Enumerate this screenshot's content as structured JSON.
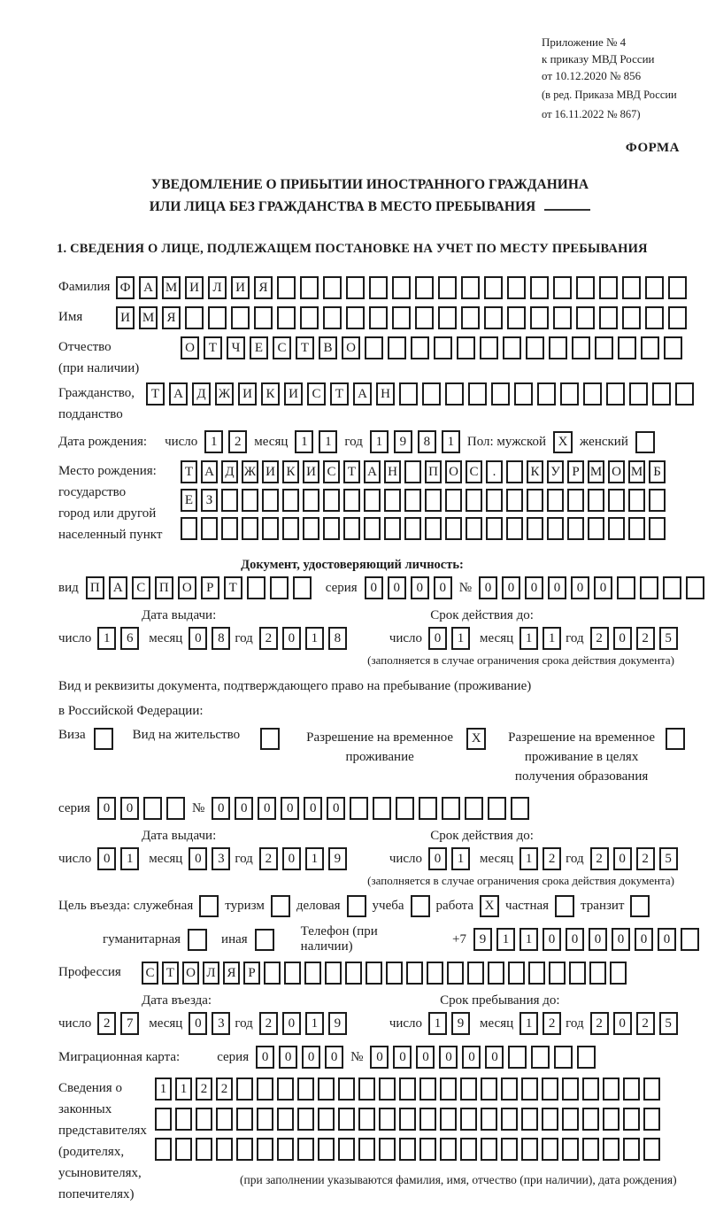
{
  "header": {
    "annex_lines": [
      "Приложение № 4",
      "к приказу МВД России",
      "от 10.12.2020 № 856"
    ],
    "annex_note_lines": [
      "(в ред. Приказа МВД России",
      "от 16.11.2022 № 867)"
    ],
    "form_label": "ФОРМА",
    "title_line1": "УВЕДОМЛЕНИЕ О ПРИБЫТИИ ИНОСТРАННОГО ГРАЖДАНИНА",
    "title_line2": "ИЛИ ЛИЦА БЕЗ ГРАЖДАНСТВА В МЕСТО ПРЕБЫВАНИЯ",
    "section1_title": "1. СВЕДЕНИЯ О ЛИЦЕ, ПОДЛЕЖАЩЕМ ПОСТАНОВКЕ НА УЧЕТ ПО МЕСТУ ПРЕБЫВАНИЯ"
  },
  "labels": {
    "surname": "Фамилия",
    "given_name": "Имя",
    "patronymic": "Отчество",
    "patronymic_note": "(при наличии)",
    "citizenship1": "Гражданство,",
    "citizenship2": "подданство",
    "birth_date": "Дата рождения:",
    "day": "число",
    "month": "месяц",
    "year": "год",
    "sex": "Пол: мужской",
    "sex_female": "женский",
    "birthplace1": "Место рождения:",
    "birthplace2": "государство",
    "birthplace3": "город или другой",
    "birthplace4": "населенный пункт",
    "identity_doc_header": "Документ, удостоверяющий личность:",
    "doc_type": "вид",
    "series": "серия",
    "number_sign": "№",
    "issue_date": "Дата выдачи:",
    "valid_until": "Срок действия до:",
    "valid_note": "(заполняется в случае ограничения срока действия документа)",
    "right_doc_line1": "Вид и реквизиты документа, подтверждающего право на пребывание (проживание)",
    "right_doc_line2": "в Российской Федерации:",
    "visa": "Виза",
    "residence_permit": "Вид на жительство",
    "temp_residence": "Разрешение на временное проживание",
    "temp_residence_edu": "Разрешение на временное проживание в целях получения образования",
    "purpose": "Цель въезда: служебная",
    "tourism": "туризм",
    "business": "деловая",
    "study": "учеба",
    "work": "работа",
    "private": "частная",
    "transit": "транзит",
    "humanitarian": "гуманитарная",
    "other": "иная",
    "phone": "Телефон (при наличии)",
    "phone_prefix": "+7",
    "profession": "Профессия",
    "entry_date": "Дата въезда:",
    "stay_until": "Срок пребывания до:",
    "migration_card": "Миграционная карта:",
    "reps1": "Сведения о",
    "reps2": "законных",
    "reps3": "представителях",
    "reps4": "(родителях,",
    "reps5": "усыновителях,",
    "reps6": "попечителях)",
    "reps_note": "(при заполнении указываются фамилия, имя, отчество (при наличии), дата рождения)"
  },
  "fields": {
    "surname": {
      "value": "ФАМИЛИЯ",
      "total": 25
    },
    "given_name": {
      "value": "ИМЯ",
      "total": 25
    },
    "patronymic": {
      "value": "ОТЧЕСТВО",
      "total": 22
    },
    "citizenship": {
      "value": "ТАДЖИКИСТАН",
      "total": 24
    },
    "birth_day": {
      "value": "12",
      "total": 2
    },
    "birth_month": {
      "value": "11",
      "total": 2
    },
    "birth_year": {
      "value": "1981",
      "total": 4
    },
    "birthplace_row1": {
      "value": "ТАДЖИКИСТАН ПОС. КУРМОМБ",
      "total": 24
    },
    "birthplace_row2": {
      "value": "ЕЗ",
      "total": 24
    },
    "birthplace_row3": {
      "value": "",
      "total": 24
    },
    "doc_type": {
      "value": "ПАСПОРТ",
      "total": 10
    },
    "doc_series": {
      "value": "0000",
      "total": 4
    },
    "doc_number": {
      "value": "000000",
      "total": 11
    },
    "doc_issue_day": {
      "value": "16",
      "total": 2
    },
    "doc_issue_month": {
      "value": "08",
      "total": 2
    },
    "doc_issue_year": {
      "value": "2018",
      "total": 4
    },
    "doc_valid_day": {
      "value": "01",
      "total": 2
    },
    "doc_valid_month": {
      "value": "11",
      "total": 2
    },
    "doc_valid_year": {
      "value": "2025",
      "total": 4
    },
    "res_series": {
      "value": "00",
      "total": 4
    },
    "res_number": {
      "value": "000000",
      "total": 14
    },
    "res_issue_day": {
      "value": "01",
      "total": 2
    },
    "res_issue_month": {
      "value": "03",
      "total": 2
    },
    "res_issue_year": {
      "value": "2019",
      "total": 4
    },
    "res_valid_day": {
      "value": "01",
      "total": 2
    },
    "res_valid_month": {
      "value": "12",
      "total": 2
    },
    "res_valid_year": {
      "value": "2025",
      "total": 4
    },
    "phone": {
      "value": "911000000",
      "total": 10
    },
    "profession": {
      "value": "СТОЛЯР",
      "total": 24
    },
    "entry_day": {
      "value": "27",
      "total": 2
    },
    "entry_month": {
      "value": "03",
      "total": 2
    },
    "entry_year": {
      "value": "2019",
      "total": 4
    },
    "stay_day": {
      "value": "19",
      "total": 2
    },
    "stay_month": {
      "value": "12",
      "total": 2
    },
    "stay_year": {
      "value": "2025",
      "total": 4
    },
    "mig_series": {
      "value": "0000",
      "total": 4
    },
    "mig_number": {
      "value": "000000",
      "total": 10
    },
    "reps_row1": {
      "value": "1122",
      "total": 25
    },
    "reps_row2": {
      "value": "",
      "total": 25
    },
    "reps_row3": {
      "value": "",
      "total": 25
    }
  },
  "checks": {
    "sex_male": "X",
    "sex_female": "",
    "visa": "",
    "residence_permit": "",
    "temp_residence": "X",
    "temp_residence_edu": "",
    "purpose_official": "",
    "tourism": "",
    "business": "",
    "study": "",
    "work": "X",
    "private": "",
    "transit": "",
    "humanitarian": "",
    "other": ""
  }
}
